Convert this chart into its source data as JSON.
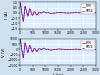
{
  "bg_color": "#cce0f0",
  "plot_bg": "#ddeeff",
  "top": {
    "ylabel": "I (A)",
    "ylim": [
      -1.5,
      1.0
    ],
    "yticks": [
      -1.5,
      -1.0,
      -0.5,
      0.0,
      0.5,
      1.0
    ],
    "xlim": [
      0,
      3000
    ],
    "xticks": [
      0,
      500,
      1000,
      1500,
      2000,
      2500,
      3000
    ],
    "legend": [
      "FEM",
      "SPICE"
    ],
    "line1_color": "#ee2222",
    "line2_color": "#2222ee"
  },
  "bottom": {
    "ylabel": "V (V)",
    "xlabel": "t (ps)",
    "ylim": [
      -1500,
      1000
    ],
    "yticks": [
      -1500,
      -1000,
      -500,
      0,
      500,
      1000
    ],
    "xlim": [
      0,
      3000
    ],
    "xticks": [
      0,
      500,
      1000,
      1500,
      2000,
      2500,
      3000
    ],
    "legend": [
      "FEM",
      "SPICE"
    ],
    "line1_color": "#ee2222",
    "line2_color": "#2222ee"
  }
}
